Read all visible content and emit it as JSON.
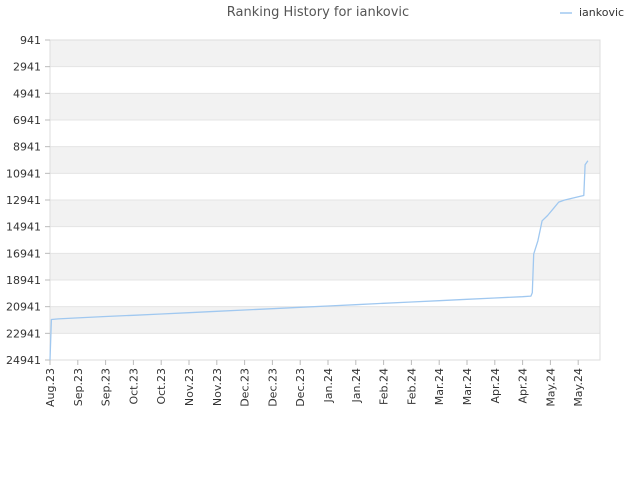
{
  "chart_data": {
    "type": "line",
    "title": "Ranking History for iankovic",
    "xlabel": "",
    "ylabel": "",
    "y_inverted": true,
    "ylim": [
      941,
      24941
    ],
    "y_ticks": [
      941,
      2941,
      4941,
      6941,
      8941,
      10941,
      12941,
      14941,
      16941,
      18941,
      20941,
      22941,
      24941
    ],
    "x_ticks": [
      "Aug.23",
      "Sep.23",
      "Sep.23",
      "Oct.23",
      "Oct.23",
      "Nov.23",
      "Nov.23",
      "Dec.23",
      "Dec.23",
      "Dec.23",
      "Jan.24",
      "Jan.24",
      "Feb.24",
      "Feb.24",
      "Mar.24",
      "Mar.24",
      "Apr.24",
      "Apr.24",
      "May.24",
      "May.24"
    ],
    "legend": {
      "position": "top-right",
      "entries": [
        "iankovic"
      ]
    },
    "grid": true,
    "colors": {
      "line": "#a0c8f0",
      "band": "#f2f2f2",
      "axis": "#dddddd"
    },
    "series": [
      {
        "name": "iankovic",
        "x": [
          0,
          0.05,
          0.3,
          1,
          2,
          3,
          4,
          5,
          6,
          7,
          8,
          9,
          10,
          11,
          12,
          13,
          14,
          15,
          16,
          17,
          17.3,
          17.35,
          17.4,
          17.55,
          17.65,
          17.7,
          17.9,
          18.1,
          18.3,
          18.5,
          18.8,
          19.1,
          19.2,
          19.25,
          19.35
        ],
        "y": [
          24941,
          21900,
          21860,
          21780,
          21680,
          21590,
          21490,
          21390,
          21290,
          21190,
          21090,
          20990,
          20890,
          20790,
          20690,
          20590,
          20490,
          20390,
          20290,
          20190,
          20150,
          19900,
          17000,
          16000,
          15000,
          14500,
          14100,
          13600,
          13100,
          12950,
          12800,
          12650,
          12600,
          10300,
          10000
        ]
      }
    ]
  }
}
